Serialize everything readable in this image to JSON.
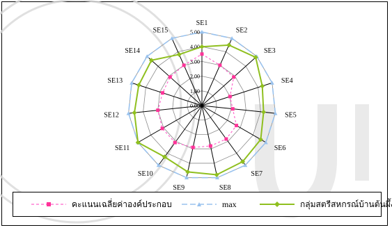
{
  "chart_data": {
    "type": "radar",
    "title": "",
    "categories": [
      "SE1",
      "SE2",
      "SE3",
      "SE4",
      "SE5",
      "SE6",
      "SE7",
      "SE8",
      "SE9",
      "SE10",
      "SE11",
      "SE12",
      "SE13",
      "SE14",
      "SE15"
    ],
    "rlim": [
      0,
      5
    ],
    "r_ticks": [
      "0.00",
      "1.00",
      "2.00",
      "3.00",
      "4.00",
      "5.00"
    ],
    "grid": true,
    "legend_position": "bottom",
    "series": [
      {
        "name": "คะแนนเฉลี่ยค่าองค์ประกอบ",
        "color": "#ff66cc",
        "style": "dashed-square-markers",
        "values": [
          3.5,
          3.0,
          2.9,
          2.0,
          2.1,
          2.7,
          2.8,
          2.8,
          2.9,
          3.1,
          3.1,
          3.0,
          2.8,
          2.9,
          3.0
        ]
      },
      {
        "name": "max",
        "color": "#99c2ee",
        "style": "dashed-triangle-markers",
        "values": [
          5,
          5,
          5,
          5,
          5,
          5,
          5,
          5,
          5,
          5,
          5,
          5,
          5,
          5,
          5
        ]
      },
      {
        "name": "กลุ่มสตรีสหกรณ์บ้านต้นผึ้ง",
        "color": "#8fbf1f",
        "style": "solid-diamond-markers",
        "values": [
          4.0,
          4.5,
          4.9,
          4.3,
          4.2,
          4.6,
          4.7,
          4.8,
          4.6,
          4.3,
          5.0,
          4.6,
          4.5,
          4.6,
          3.8
        ]
      }
    ]
  }
}
